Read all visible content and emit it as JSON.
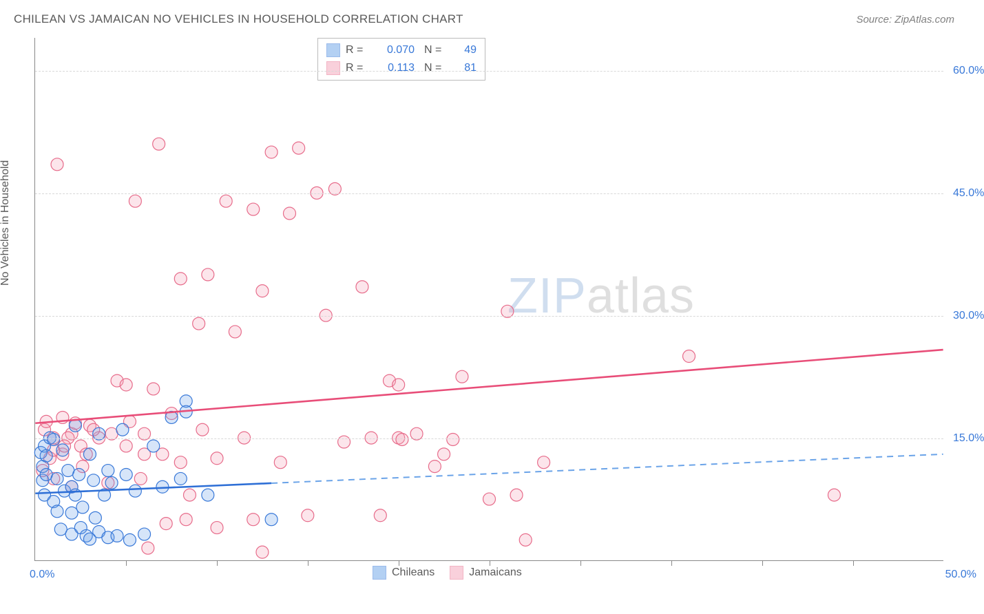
{
  "title": "CHILEAN VS JAMAICAN NO VEHICLES IN HOUSEHOLD CORRELATION CHART",
  "source": "Source: ZipAtlas.com",
  "ylabel": "No Vehicles in Household",
  "watermark": {
    "part1": "ZIP",
    "part2": "atlas"
  },
  "chart": {
    "type": "scatter",
    "x_domain": [
      0,
      50
    ],
    "y_domain": [
      0,
      64
    ],
    "x_ticks_minor": [
      5,
      10,
      15,
      20,
      25,
      30,
      35,
      40,
      45
    ],
    "y_gridlines": [
      15,
      30,
      45,
      60
    ],
    "y_tick_labels": [
      "15.0%",
      "30.0%",
      "45.0%",
      "60.0%"
    ],
    "x_tick_left": "0.0%",
    "x_tick_right": "50.0%",
    "background_color": "#ffffff",
    "grid_color": "#d8d8d8",
    "axis_color": "#888888",
    "tick_label_color": "#3878d8",
    "marker_radius": 9,
    "marker_stroke_width": 1.2,
    "marker_fill_opacity": 0.28,
    "series": [
      {
        "name": "Chileans",
        "color_stroke": "#3878d8",
        "color_fill": "#6aa3e8",
        "R": "0.070",
        "N": "49",
        "trend": {
          "y_at_x0": 8.2,
          "y_at_x50": 13.0,
          "solid_until_x": 13.0,
          "solid": "#2e6fd6",
          "dash": "#6aa3e8",
          "width": 2.6
        },
        "points": [
          [
            0.3,
            13.2
          ],
          [
            0.4,
            11.5
          ],
          [
            0.4,
            9.8
          ],
          [
            0.5,
            14.0
          ],
          [
            0.5,
            8.0
          ],
          [
            0.6,
            10.5
          ],
          [
            0.6,
            12.8
          ],
          [
            0.8,
            15.0
          ],
          [
            1.0,
            14.8
          ],
          [
            1.0,
            7.2
          ],
          [
            1.2,
            10.0
          ],
          [
            1.2,
            6.0
          ],
          [
            1.4,
            3.8
          ],
          [
            1.5,
            13.5
          ],
          [
            1.6,
            8.5
          ],
          [
            1.8,
            11.0
          ],
          [
            2.0,
            5.8
          ],
          [
            2.0,
            9.0
          ],
          [
            2.0,
            3.2
          ],
          [
            2.2,
            8.0
          ],
          [
            2.2,
            16.5
          ],
          [
            2.4,
            10.5
          ],
          [
            2.5,
            4.0
          ],
          [
            2.6,
            6.5
          ],
          [
            2.8,
            3.0
          ],
          [
            3.0,
            13.0
          ],
          [
            3.0,
            2.6
          ],
          [
            3.2,
            9.8
          ],
          [
            3.3,
            5.2
          ],
          [
            3.5,
            15.5
          ],
          [
            3.5,
            3.5
          ],
          [
            3.8,
            8.0
          ],
          [
            4.0,
            2.8
          ],
          [
            4.0,
            11.0
          ],
          [
            4.2,
            9.5
          ],
          [
            4.5,
            3.0
          ],
          [
            4.8,
            16.0
          ],
          [
            5.0,
            10.5
          ],
          [
            5.2,
            2.5
          ],
          [
            5.5,
            8.5
          ],
          [
            6.0,
            3.2
          ],
          [
            6.5,
            14.0
          ],
          [
            7.0,
            9.0
          ],
          [
            7.5,
            17.5
          ],
          [
            8.0,
            10.0
          ],
          [
            8.3,
            19.5
          ],
          [
            8.3,
            18.2
          ],
          [
            9.5,
            8.0
          ],
          [
            13.0,
            5.0
          ]
        ]
      },
      {
        "name": "Jamaicans",
        "color_stroke": "#e76b8a",
        "color_fill": "#f4a3b8",
        "R": "0.113",
        "N": "81",
        "trend": {
          "y_at_x0": 16.8,
          "y_at_x50": 25.8,
          "solid_until_x": 50,
          "solid": "#e84d78",
          "dash": "#e84d78",
          "width": 2.6
        },
        "points": [
          [
            0.5,
            16.0
          ],
          [
            0.6,
            17.0
          ],
          [
            0.8,
            12.5
          ],
          [
            1.0,
            15.0
          ],
          [
            1.0,
            10.0
          ],
          [
            1.2,
            48.5
          ],
          [
            1.5,
            13.0
          ],
          [
            1.5,
            17.5
          ],
          [
            2.0,
            9.0
          ],
          [
            2.0,
            15.5
          ],
          [
            2.2,
            16.8
          ],
          [
            2.5,
            14.0
          ],
          [
            2.6,
            11.5
          ],
          [
            3.0,
            16.5
          ],
          [
            3.5,
            15.0
          ],
          [
            4.0,
            9.5
          ],
          [
            4.5,
            22.0
          ],
          [
            5.0,
            14.0
          ],
          [
            5.0,
            21.5
          ],
          [
            5.2,
            17.0
          ],
          [
            5.5,
            44.0
          ],
          [
            5.8,
            10.0
          ],
          [
            6.0,
            15.5
          ],
          [
            6.2,
            1.5
          ],
          [
            6.5,
            21.0
          ],
          [
            6.8,
            51.0
          ],
          [
            7.0,
            13.0
          ],
          [
            7.2,
            4.5
          ],
          [
            7.5,
            18.0
          ],
          [
            8.0,
            12.0
          ],
          [
            8.0,
            34.5
          ],
          [
            8.3,
            5.0
          ],
          [
            8.5,
            8.0
          ],
          [
            9.0,
            29.0
          ],
          [
            9.2,
            16.0
          ],
          [
            9.5,
            35.0
          ],
          [
            10.0,
            12.5
          ],
          [
            10.0,
            4.0
          ],
          [
            10.5,
            44.0
          ],
          [
            11.0,
            28.0
          ],
          [
            11.5,
            15.0
          ],
          [
            12.0,
            43.0
          ],
          [
            12.0,
            5.0
          ],
          [
            12.5,
            33.0
          ],
          [
            12.5,
            1.0
          ],
          [
            13.0,
            50.0
          ],
          [
            13.5,
            12.0
          ],
          [
            14.0,
            42.5
          ],
          [
            14.5,
            50.5
          ],
          [
            15.0,
            5.5
          ],
          [
            15.5,
            45.0
          ],
          [
            16.0,
            30.0
          ],
          [
            16.5,
            45.5
          ],
          [
            17.0,
            14.5
          ],
          [
            18.0,
            33.5
          ],
          [
            18.5,
            15.0
          ],
          [
            19.0,
            5.5
          ],
          [
            19.5,
            22.0
          ],
          [
            20.0,
            15.0
          ],
          [
            20.0,
            21.5
          ],
          [
            20.2,
            14.8
          ],
          [
            21.0,
            15.5
          ],
          [
            22.0,
            11.5
          ],
          [
            22.5,
            13.0
          ],
          [
            23.0,
            14.8
          ],
          [
            23.5,
            22.5
          ],
          [
            25.0,
            7.5
          ],
          [
            26.0,
            30.5
          ],
          [
            26.5,
            8.0
          ],
          [
            27.0,
            2.5
          ],
          [
            28.0,
            12.0
          ],
          [
            36.0,
            25.0
          ],
          [
            44.0,
            8.0
          ],
          [
            1.0,
            13.5
          ],
          [
            2.8,
            13.0
          ],
          [
            4.2,
            15.5
          ],
          [
            6.0,
            13.0
          ],
          [
            3.2,
            16.0
          ],
          [
            1.8,
            15.0
          ],
          [
            0.4,
            11.0
          ],
          [
            1.6,
            14.0
          ]
        ]
      }
    ]
  },
  "legend_top": {
    "r_label": "R =",
    "n_label": "N ="
  },
  "legend_bottom": {
    "items": [
      "Chileans",
      "Jamaicans"
    ]
  }
}
